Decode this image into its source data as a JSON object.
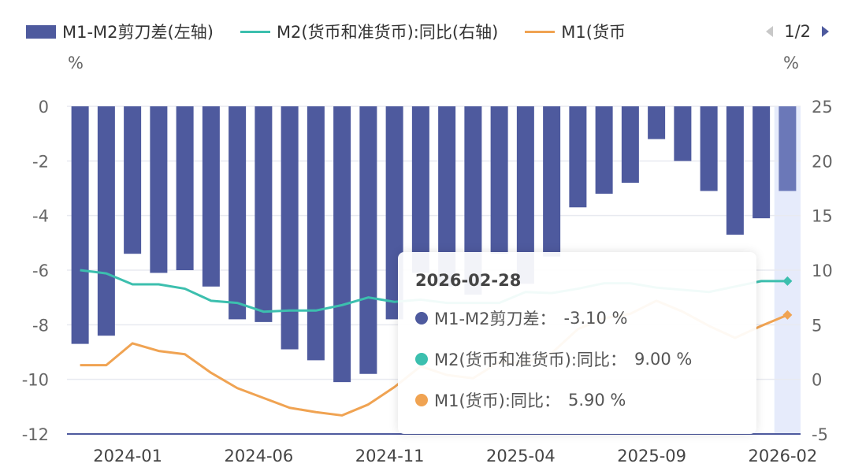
{
  "legend": {
    "items": [
      {
        "label": "M1-M2剪刀差(左轴)",
        "color": "#4e5a9e",
        "kind": "bar"
      },
      {
        "label": "M2(货币和准货币):同比(右轴)",
        "color": "#3cbfae",
        "kind": "line"
      },
      {
        "label": "M1(货币",
        "color": "#f0a352",
        "kind": "line"
      }
    ],
    "page": "1/2"
  },
  "tooltip": {
    "title": "2026-02-28",
    "rows": [
      {
        "label": "M1-M2剪刀差：",
        "value": "-3.10 %",
        "color": "#4e5a9e"
      },
      {
        "label": "M2(货币和准货币):同比：",
        "value": "9.00 %",
        "color": "#3cbfae"
      },
      {
        "label": "M1(货币):同比：",
        "value": "5.90 %",
        "color": "#f0a352"
      }
    ]
  },
  "chart_data": {
    "type": "bar+line",
    "left_unit": "%",
    "right_unit": "%",
    "left_ylim": [
      -12,
      0
    ],
    "left_ticks": [
      "0",
      "-2",
      "-4",
      "-6",
      "-8",
      "-10",
      "-12"
    ],
    "right_ylim": [
      -5,
      25
    ],
    "right_ticks": [
      "25",
      "20",
      "15",
      "10",
      "5",
      "0",
      "-5"
    ],
    "grid": true,
    "legend_position": "top",
    "highlighted_category": "2026-02",
    "x_tick_labels": [
      "2024-01",
      "2024-06",
      "2024-11",
      "2025-04",
      "2025-09",
      "2026-02"
    ],
    "categories": [
      "2023-11",
      "2023-12",
      "2024-01",
      "2024-02",
      "2024-03",
      "2024-04",
      "2024-05",
      "2024-06",
      "2024-07",
      "2024-08",
      "2024-09",
      "2024-10",
      "2024-11",
      "2024-12",
      "2025-01",
      "2025-02",
      "2025-03",
      "2025-04",
      "2025-05",
      "2025-06",
      "2025-07",
      "2025-08",
      "2025-09",
      "2025-10",
      "2025-11",
      "2025-12",
      "2026-01",
      "2026-02"
    ],
    "series": [
      {
        "name": "M1-M2剪刀差(左轴)",
        "type": "bar",
        "axis": "left",
        "color": "#4e5a9e",
        "values": [
          -8.7,
          -8.4,
          -5.4,
          -6.1,
          -6.0,
          -6.6,
          -7.8,
          -7.9,
          -8.9,
          -9.3,
          -10.1,
          -9.8,
          -7.8,
          -6.1,
          -6.6,
          -6.9,
          -5.4,
          -6.5,
          -5.5,
          -3.7,
          -3.2,
          -2.8,
          -1.2,
          -2.0,
          -3.1,
          -4.7,
          -4.1,
          -3.1
        ]
      },
      {
        "name": "M2(货币和准货币):同比(右轴)",
        "type": "line",
        "axis": "right",
        "color": "#3cbfae",
        "values": [
          10.0,
          9.7,
          8.7,
          8.7,
          8.3,
          7.2,
          7.0,
          6.2,
          6.3,
          6.3,
          6.8,
          7.5,
          7.1,
          7.3,
          7.0,
          7.0,
          7.0,
          8.0,
          7.9,
          8.3,
          8.8,
          8.8,
          8.4,
          8.2,
          8.0,
          8.5,
          9.0,
          9.0
        ]
      },
      {
        "name": "M1(货币):同比",
        "type": "line",
        "axis": "right",
        "color": "#f0a352",
        "values": [
          1.3,
          1.3,
          3.3,
          2.6,
          2.3,
          0.6,
          -0.8,
          -1.7,
          -2.6,
          -3.0,
          -3.3,
          -2.3,
          -0.7,
          1.2,
          0.4,
          0.1,
          1.6,
          1.5,
          2.4,
          4.6,
          5.6,
          6.0,
          7.2,
          6.2,
          4.9,
          3.8,
          4.9,
          5.9
        ]
      }
    ]
  }
}
